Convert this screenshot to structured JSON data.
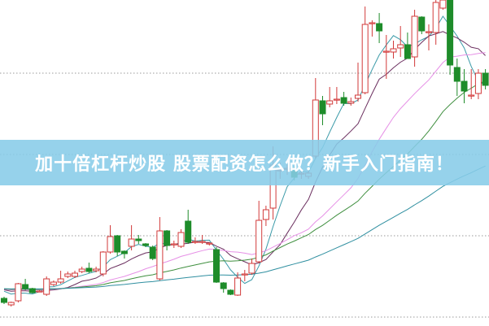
{
  "banner": {
    "title": "加十倍杠杆炒股 股票配资怎么做？新手入门指南！"
  },
  "chart_data": {
    "type": "candlestick",
    "title": "",
    "xlabel": "",
    "ylabel": "",
    "ylim": [
      0,
      400
    ],
    "grid": "horizontal dotted",
    "colors": {
      "up": "#d23a3a",
      "down": "#1e8c2a",
      "grid": "#999999",
      "ma": [
        "#3a9aa8",
        "#6b2f5f",
        "#e690e6",
        "#3f8f3f",
        "#2f8fa0"
      ]
    },
    "moving_averages": [
      5,
      10,
      20,
      30,
      60
    ],
    "candles_ohlc": [
      [
        33,
        35,
        26,
        28
      ],
      [
        25,
        29,
        23,
        28
      ],
      [
        30,
        52,
        28,
        51
      ],
      [
        50,
        57,
        43,
        45
      ],
      [
        45,
        46,
        39,
        40
      ],
      [
        42,
        43,
        41,
        42
      ],
      [
        38,
        60,
        36,
        57
      ],
      [
        50,
        55,
        48,
        53
      ],
      [
        53,
        67,
        51,
        57
      ],
      [
        60,
        66,
        58,
        63
      ],
      [
        60,
        67,
        58,
        64
      ],
      [
        66,
        72,
        64,
        69
      ],
      [
        70,
        77,
        64,
        66
      ],
      [
        67,
        72,
        65,
        69
      ],
      [
        63,
        91,
        60,
        90
      ],
      [
        90,
        123,
        88,
        109
      ],
      [
        110,
        111,
        85,
        90
      ],
      [
        91,
        92,
        82,
        88
      ],
      [
        97,
        123,
        92,
        106
      ],
      [
        106,
        111,
        100,
        104
      ],
      [
        100,
        101,
        96,
        98
      ],
      [
        96,
        98,
        80,
        82
      ],
      [
        57,
        133,
        55,
        116
      ],
      [
        116,
        117,
        92,
        98
      ],
      [
        100,
        104,
        95,
        100
      ],
      [
        97,
        118,
        95,
        114
      ],
      [
        128,
        142,
        100,
        102
      ],
      [
        102,
        108,
        100,
        103
      ],
      [
        102,
        111,
        100,
        103
      ],
      [
        100,
        102,
        98,
        101
      ],
      [
        93,
        96,
        52,
        53
      ],
      [
        52,
        53,
        40,
        45
      ],
      [
        43,
        44,
        37,
        38
      ],
      [
        37,
        65,
        36,
        58
      ],
      [
        62,
        68,
        54,
        63
      ],
      [
        64,
        82,
        62,
        76
      ],
      [
        78,
        153,
        76,
        129
      ],
      [
        130,
        147,
        122,
        142
      ],
      [
        144,
        220,
        130,
        197
      ],
      [
        190,
        200,
        180,
        191
      ],
      [
        192,
        198,
        185,
        193
      ],
      [
        190,
        195,
        178,
        182
      ],
      [
        186,
        192,
        180,
        187
      ],
      [
        183,
        190,
        180,
        187
      ],
      [
        208,
        304,
        205,
        277
      ],
      [
        276,
        282,
        246,
        260
      ],
      [
        272,
        293,
        268,
        276
      ],
      [
        277,
        293,
        272,
        278
      ],
      [
        280,
        287,
        270,
        273
      ],
      [
        273,
        280,
        270,
        275
      ],
      [
        279,
        323,
        275,
        283
      ],
      [
        286,
        392,
        284,
        370
      ],
      [
        371,
        375,
        355,
        372
      ],
      [
        371,
        384,
        347,
        362
      ],
      [
        336,
        357,
        303,
        337
      ],
      [
        336,
        350,
        328,
        340
      ],
      [
        341,
        368,
        330,
        345
      ],
      [
        345,
        360,
        328,
        328
      ],
      [
        330,
        388,
        318,
        380
      ],
      [
        379,
        380,
        358,
        362
      ],
      [
        360,
        370,
        338,
        361
      ],
      [
        360,
        400,
        345,
        397
      ],
      [
        390,
        400,
        388,
        400
      ],
      [
        400,
        400,
        308,
        320
      ],
      [
        317,
        328,
        282,
        300
      ],
      [
        300,
        315,
        273,
        288
      ],
      [
        282,
        315,
        278,
        283
      ],
      [
        285,
        315,
        278,
        310
      ],
      [
        310,
        315,
        290,
        295
      ]
    ]
  }
}
